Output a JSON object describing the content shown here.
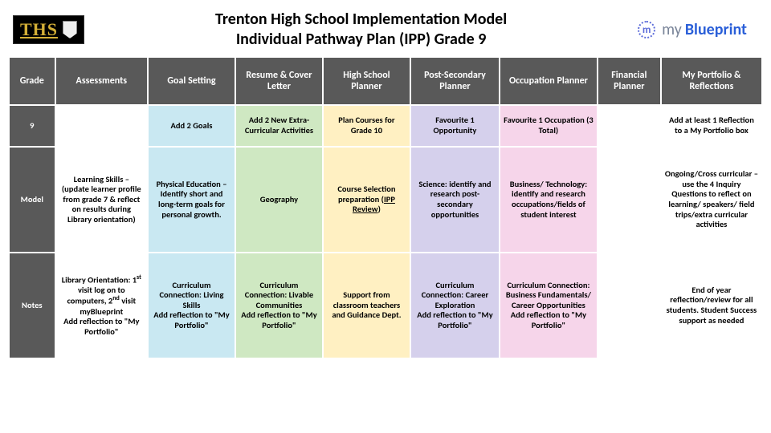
{
  "header": {
    "ths_logo_text": "THS",
    "title_line1": "Trenton High School Implementation Model",
    "title_line2": "Individual Pathway Plan (IPP) Grade 9",
    "myblueprint_my": "my",
    "myblueprint_bp": "Blueprint"
  },
  "columns": [
    "Grade",
    "Assessments",
    "Goal Setting",
    "Resume & Cover Letter",
    "High School Planner",
    "Post-Secondary Planner",
    "Occupation Planner",
    "Financial Planner",
    "My Portfolio & Reflections"
  ],
  "row_labels": {
    "grade9": "9",
    "model": "Model",
    "notes": "Notes"
  },
  "colors": {
    "header_bg": "#595959",
    "header_fg": "#ffffff",
    "blank": "#ffffff",
    "assessments": "#ffffff",
    "goal": "#c9e8f2",
    "resume": "#cfe8c2",
    "hs_planner": "#fff0c2",
    "ps_planner": "#d5d0ec",
    "occupation": "#f6d5ea",
    "financial": "#ffffff",
    "portfolio": "#ffffff"
  },
  "grade9_row": {
    "assessments": "",
    "goal": "Add 2 Goals",
    "resume": "Add 2 New Extra-Curricular Activities",
    "hs_planner": "Plan Courses for Grade 10",
    "ps_planner": "Favourite 1 Opportunity",
    "occupation": "Favourite 1 Occupation (3 Total)",
    "financial": "",
    "portfolio": "Add at least 1 Reflection to a My Portfolio box"
  },
  "model_row": {
    "assessments": "Learning Skills – (update learner profile from grade 7 & reflect on results during Library orientation)",
    "goal": "Physical Education – Identify short and long-term goals for personal growth.",
    "resume": "Geography",
    "hs_planner_pre": "Course Selection preparation (",
    "hs_planner_u": "IPP Review",
    "hs_planner_post": ")",
    "ps_planner": "Science: identify and research post-secondary opportunities",
    "occupation": "Business/ Technology: identify and research occupations/fields of student interest",
    "financial": "",
    "portfolio": "Ongoing/Cross curricular – use the 4 Inquiry Questions to reflect on learning/ speakers/ field trips/extra curricular activities"
  },
  "notes_row": {
    "assessments_l1": "Library Orientation: 1",
    "assessments_sup1": "st",
    "assessments_l2": " visit log on to computers, 2",
    "assessments_sup2": "nd",
    "assessments_l3": " visit myBlueprint",
    "assessments_bold": "Add reflection to \"My Portfolio\"",
    "goal_l1": "Curriculum Connection:  Living Skills",
    "goal_bold": "Add reflection to \"My Portfolio\"",
    "resume_l1": "Curriculum Connection: Livable Communities",
    "resume_bold": "Add reflection to \"My Portfolio\"",
    "hs_planner": "Support from classroom teachers and Guidance Dept.",
    "ps_planner_l1": "Curriculum Connection:  Career Exploration",
    "ps_planner_bold": "Add reflection to \"My Portfolio\"",
    "occupation_l1": "Curriculum Connection: Business Fundamentals/ Career Opportunities",
    "occupation_bold": "Add reflection to \"My Portfolio\"",
    "financial": "",
    "portfolio": "End of year reflection/review for all students. Student Success support as needed"
  }
}
